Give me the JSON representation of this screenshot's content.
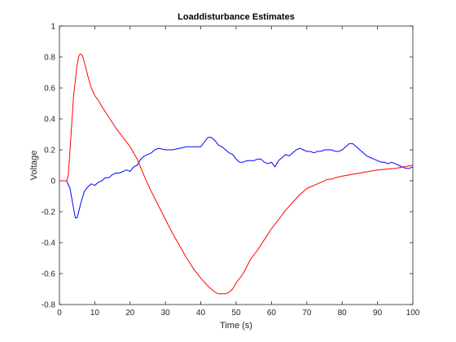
{
  "chart_data": {
    "type": "line",
    "title": "Loaddisturbance Estimates",
    "xlabel": "Time (s)",
    "ylabel": "Voltage",
    "xlim": [
      0,
      100
    ],
    "ylim": [
      -0.8,
      1
    ],
    "grid": false,
    "x_ticks": [
      0,
      10,
      20,
      30,
      40,
      50,
      60,
      70,
      80,
      90,
      100
    ],
    "y_ticks": [
      -0.8,
      -0.6,
      -0.4,
      -0.2,
      0,
      0.2,
      0.4,
      0.6,
      0.8,
      1
    ],
    "x_tick_labels": [
      "0",
      "10",
      "20",
      "30",
      "40",
      "50",
      "60",
      "70",
      "80",
      "90",
      "100"
    ],
    "y_tick_labels": [
      "-0.8",
      "-0.6",
      "-0.4",
      "-0.2",
      "0",
      "0.2",
      "0.4",
      "0.6",
      "0.8",
      "1"
    ],
    "series": [
      {
        "color": "#0000ff",
        "x": [
          0,
          2,
          3,
          4,
          4.5,
          5,
          6,
          7,
          8,
          9,
          10,
          11,
          12,
          13,
          14,
          15,
          16,
          17,
          18,
          19,
          20,
          21,
          22,
          23,
          24,
          25,
          26,
          27,
          28,
          30,
          32,
          34,
          36,
          38,
          40,
          41,
          42,
          43,
          44,
          45,
          46,
          47,
          48,
          49,
          50,
          51,
          52,
          53,
          54,
          55,
          56,
          57,
          58,
          59,
          60,
          61,
          62,
          63,
          64,
          65,
          66,
          67,
          68,
          69,
          70,
          71,
          72,
          73,
          74,
          75,
          76,
          77,
          78,
          79,
          80,
          81,
          82,
          83,
          84,
          85,
          86,
          87,
          88,
          89,
          90,
          91,
          92,
          93,
          94,
          95,
          96,
          97,
          98,
          99,
          100
        ],
        "y": [
          0,
          0,
          -0.05,
          -0.18,
          -0.24,
          -0.24,
          -0.15,
          -0.07,
          -0.04,
          -0.02,
          -0.03,
          -0.01,
          0.0,
          0.02,
          0.02,
          0.04,
          0.05,
          0.05,
          0.06,
          0.07,
          0.06,
          0.09,
          0.1,
          0.14,
          0.16,
          0.17,
          0.18,
          0.2,
          0.21,
          0.2,
          0.2,
          0.21,
          0.22,
          0.22,
          0.22,
          0.25,
          0.28,
          0.28,
          0.26,
          0.23,
          0.22,
          0.2,
          0.18,
          0.17,
          0.14,
          0.12,
          0.12,
          0.13,
          0.13,
          0.13,
          0.14,
          0.14,
          0.12,
          0.11,
          0.12,
          0.09,
          0.13,
          0.15,
          0.17,
          0.16,
          0.18,
          0.2,
          0.21,
          0.2,
          0.19,
          0.19,
          0.18,
          0.19,
          0.19,
          0.2,
          0.2,
          0.2,
          0.19,
          0.19,
          0.2,
          0.22,
          0.24,
          0.24,
          0.22,
          0.2,
          0.18,
          0.16,
          0.15,
          0.14,
          0.13,
          0.12,
          0.12,
          0.11,
          0.12,
          0.11,
          0.1,
          0.09,
          0.08,
          0.08,
          0.09
        ]
      },
      {
        "color": "#ff0000",
        "x": [
          0,
          2,
          2.5,
          3,
          4,
          5,
          5.5,
          6,
          6.5,
          7,
          8,
          9,
          10,
          11,
          12,
          14,
          16,
          18,
          20,
          22,
          24,
          26,
          28,
          30,
          32,
          34,
          36,
          38,
          40,
          42,
          44,
          45,
          46,
          47,
          48,
          49,
          50,
          52,
          54,
          56,
          58,
          60,
          62,
          64,
          66,
          68,
          70,
          72,
          74,
          76,
          77,
          78,
          80,
          85,
          90,
          95,
          100
        ],
        "y": [
          0,
          0,
          0.03,
          0.2,
          0.55,
          0.75,
          0.81,
          0.82,
          0.81,
          0.77,
          0.68,
          0.6,
          0.55,
          0.52,
          0.48,
          0.41,
          0.34,
          0.28,
          0.22,
          0.14,
          0.03,
          -0.07,
          -0.16,
          -0.25,
          -0.34,
          -0.42,
          -0.5,
          -0.57,
          -0.63,
          -0.68,
          -0.72,
          -0.73,
          -0.73,
          -0.73,
          -0.72,
          -0.7,
          -0.66,
          -0.6,
          -0.51,
          -0.45,
          -0.38,
          -0.31,
          -0.25,
          -0.19,
          -0.14,
          -0.09,
          -0.05,
          -0.03,
          -0.01,
          0.01,
          0.01,
          0.02,
          0.03,
          0.05,
          0.07,
          0.08,
          0.1
        ]
      }
    ]
  }
}
